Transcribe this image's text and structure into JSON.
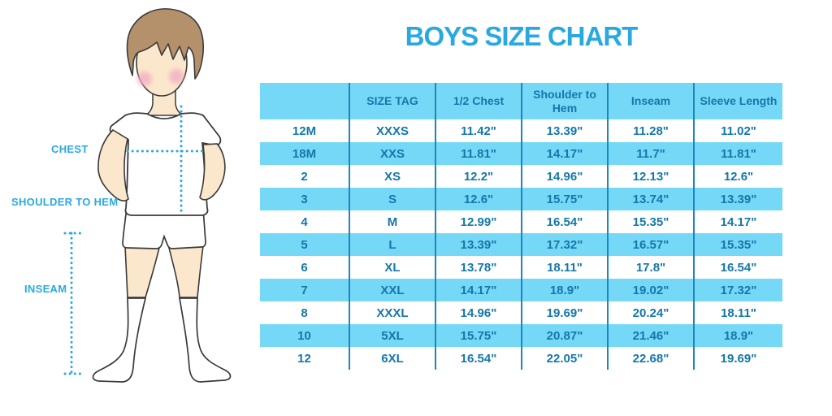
{
  "title": "BOYS SIZE CHART",
  "figure": {
    "description": "boy-with-measurement-lines-illustration",
    "chest_label": "CHEST",
    "shoulder_to_hem_label": "SHOULDER TO HEM",
    "inseam_label": "INSEAM"
  },
  "chart_data": {
    "type": "table",
    "title": "BOYS SIZE CHART",
    "columns": [
      "",
      "SIZE TAG",
      "1/2 Chest",
      "Shoulder to Hem",
      "Inseam",
      "Sleeve Length"
    ],
    "rows": [
      [
        "12M",
        "XXXS",
        "11.42\"",
        "13.39\"",
        "11.28\"",
        "11.02\""
      ],
      [
        "18M",
        "XXS",
        "11.81\"",
        "14.17\"",
        "11.7\"",
        "11.81\""
      ],
      [
        "2",
        "XS",
        "12.2\"",
        "14.96\"",
        "12.13\"",
        "12.6\""
      ],
      [
        "3",
        "S",
        "12.6\"",
        "15.75\"",
        "13.74\"",
        "13.39\""
      ],
      [
        "4",
        "M",
        "12.99\"",
        "16.54\"",
        "15.35\"",
        "14.17\""
      ],
      [
        "5",
        "L",
        "13.39\"",
        "17.32\"",
        "16.57\"",
        "15.35\""
      ],
      [
        "6",
        "XL",
        "13.78\"",
        "18.11\"",
        "17.8\"",
        "16.54\""
      ],
      [
        "7",
        "XXL",
        "14.17\"",
        "18.9\"",
        "19.02\"",
        "17.32\""
      ],
      [
        "8",
        "XXXL",
        "14.96\"",
        "19.69\"",
        "20.24\"",
        "18.11\""
      ],
      [
        "10",
        "5XL",
        "15.75\"",
        "20.87\"",
        "21.46\"",
        "18.9\""
      ],
      [
        "12",
        "6XL",
        "16.54\"",
        "22.05\"",
        "22.68\"",
        "19.69\""
      ]
    ],
    "row_striping": "white / light-blue alternating, header filled",
    "legend_position": "none",
    "grid": "vertical column separators only"
  },
  "colors": {
    "accent_cyan": "#29a9e0",
    "table_fill": "#76d8f7",
    "table_line": "#1e86bc",
    "table_text": "#1577a9",
    "skin": "#fbe7cb",
    "hair": "#b5916b",
    "cheek": "#f3aec3",
    "outline": "#3a3a3a"
  }
}
